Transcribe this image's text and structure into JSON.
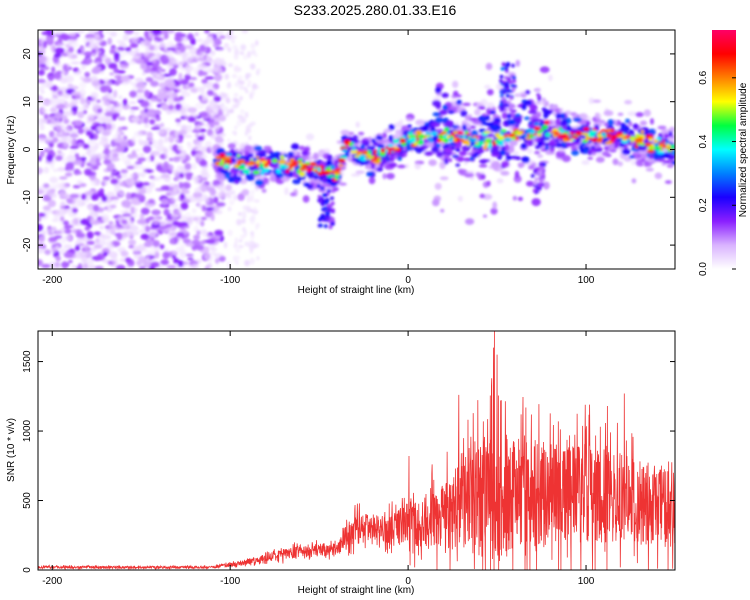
{
  "title": "S233.2025.280.01.33.E16",
  "chart_data": [
    {
      "type": "heatmap",
      "xlabel": "Height of straight line (km)",
      "ylabel": "Frequency (Hz)",
      "xlim": [
        -208,
        150
      ],
      "ylim": [
        -25,
        25
      ],
      "xticks": [
        -200,
        -100,
        0,
        100
      ],
      "yticks": [
        -20,
        -10,
        0,
        10,
        20
      ],
      "colorbar": {
        "label": "Normalized spectral amplitude",
        "range": [
          0.0,
          0.75
        ],
        "ticks": [
          0.0,
          0.2,
          0.4,
          0.6
        ],
        "tick_labels": [
          "0.0",
          "0.2",
          "0.4",
          "0.6"
        ],
        "colors": [
          "#ffffff",
          "#d9b3ff",
          "#8a1fff",
          "#1a00ff",
          "#0080ff",
          "#00ffff",
          "#00ff40",
          "#ffff00",
          "#ff8000",
          "#ff0000",
          "#ff0066"
        ]
      },
      "ridge_center_hz": [
        {
          "x": -110,
          "y": -2
        },
        {
          "x": -90,
          "y": -3
        },
        {
          "x": -70,
          "y": -3
        },
        {
          "x": -55,
          "y": -4
        },
        {
          "x": -40,
          "y": -5
        },
        {
          "x": -35,
          "y": 1
        },
        {
          "x": -20,
          "y": -2
        },
        {
          "x": -10,
          "y": 0
        },
        {
          "x": 0,
          "y": 2
        },
        {
          "x": 15,
          "y": 3
        },
        {
          "x": 30,
          "y": 2
        },
        {
          "x": 45,
          "y": 2
        },
        {
          "x": 60,
          "y": 3
        },
        {
          "x": 75,
          "y": 4
        },
        {
          "x": 90,
          "y": 3
        },
        {
          "x": 110,
          "y": 3
        },
        {
          "x": 130,
          "y": 2
        },
        {
          "x": 150,
          "y": 0
        }
      ]
    },
    {
      "type": "line",
      "xlabel": "Height of straight line (km)",
      "ylabel": "SNR (10 * v/v)",
      "xlim": [
        -208,
        150
      ],
      "ylim": [
        0,
        1720
      ],
      "xticks": [
        -200,
        -100,
        0,
        100
      ],
      "yticks": [
        0,
        500,
        1000,
        1500
      ],
      "series": [
        {
          "name": "SNR",
          "color": "#ee3333",
          "envelope": [
            {
              "x": -208,
              "mean": 20,
              "amp": 15
            },
            {
              "x": -110,
              "mean": 20,
              "amp": 15
            },
            {
              "x": -90,
              "mean": 60,
              "amp": 40
            },
            {
              "x": -60,
              "mean": 140,
              "amp": 80
            },
            {
              "x": -40,
              "mean": 150,
              "amp": 90
            },
            {
              "x": -30,
              "mean": 300,
              "amp": 200
            },
            {
              "x": -10,
              "mean": 280,
              "amp": 200
            },
            {
              "x": 0,
              "mean": 320,
              "amp": 300
            },
            {
              "x": 20,
              "mean": 380,
              "amp": 420
            },
            {
              "x": 30,
              "mean": 500,
              "amp": 650
            },
            {
              "x": 50,
              "mean": 550,
              "amp": 900
            },
            {
              "x": 70,
              "mean": 550,
              "amp": 700
            },
            {
              "x": 100,
              "mean": 550,
              "amp": 650
            },
            {
              "x": 130,
              "mean": 500,
              "amp": 550
            },
            {
              "x": 150,
              "mean": 450,
              "amp": 500
            }
          ],
          "peaks": [
            {
              "x": 48.5,
              "y": 1720
            },
            {
              "x": 48.0,
              "y": 1600
            },
            {
              "x": 50.0,
              "y": 1550
            },
            {
              "x": 47.0,
              "y": 1380
            },
            {
              "x": 28.5,
              "y": 1260
            },
            {
              "x": 52.0,
              "y": 1220
            },
            {
              "x": 102.0,
              "y": 1190
            },
            {
              "x": 112.0,
              "y": 1180
            },
            {
              "x": 63.5,
              "y": 1120
            },
            {
              "x": 121.5,
              "y": 1270
            },
            {
              "x": 0.5,
              "y": 820
            },
            {
              "x": 13.5,
              "y": 760
            }
          ]
        }
      ]
    }
  ]
}
